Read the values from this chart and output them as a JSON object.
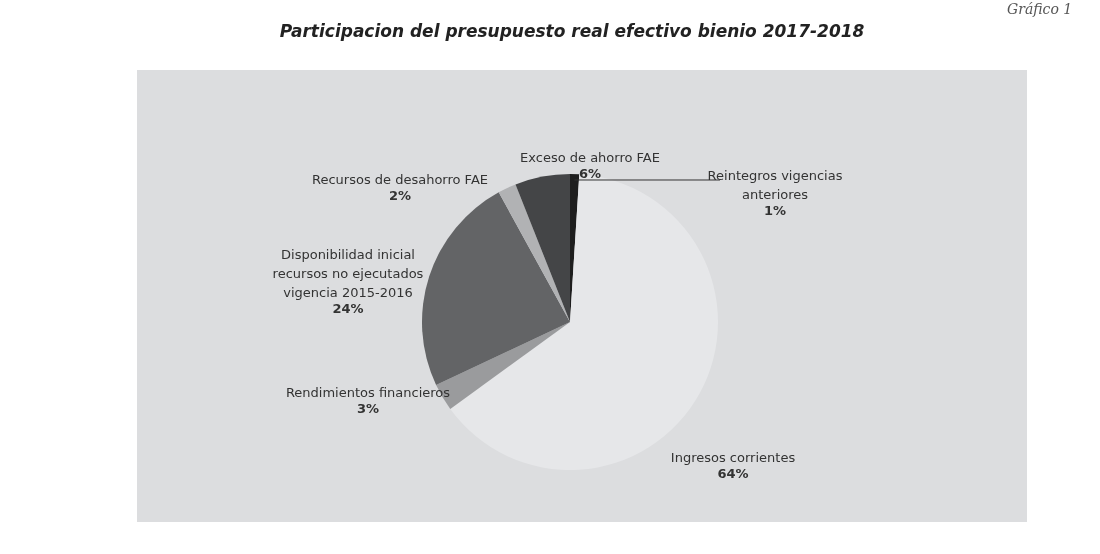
{
  "chart_data": {
    "type": "pie",
    "title": "Participacion del presupuesto real efectivo bienio 2017-2018",
    "categories": [
      "Reintegros vigencias anteriores",
      "Ingresos corrientes",
      "Rendimientos financieros",
      "Disponibilidad inicial recursos no ejecutados vigencia 2015-2016",
      "Recursos de desahorro FAE",
      "Exceso de ahorro FAE"
    ],
    "values": [
      1,
      64,
      3,
      24,
      2,
      6
    ],
    "value_labels": [
      "1%",
      "64%",
      "3%",
      "24%",
      "2%",
      "6%"
    ],
    "colors": [
      "#1e1e1e",
      "#e6e7e9",
      "#9a9b9d",
      "#636466",
      "#b1b2b4",
      "#444547"
    ],
    "annotations": [
      "Gráfico 1"
    ],
    "legend": false
  }
}
